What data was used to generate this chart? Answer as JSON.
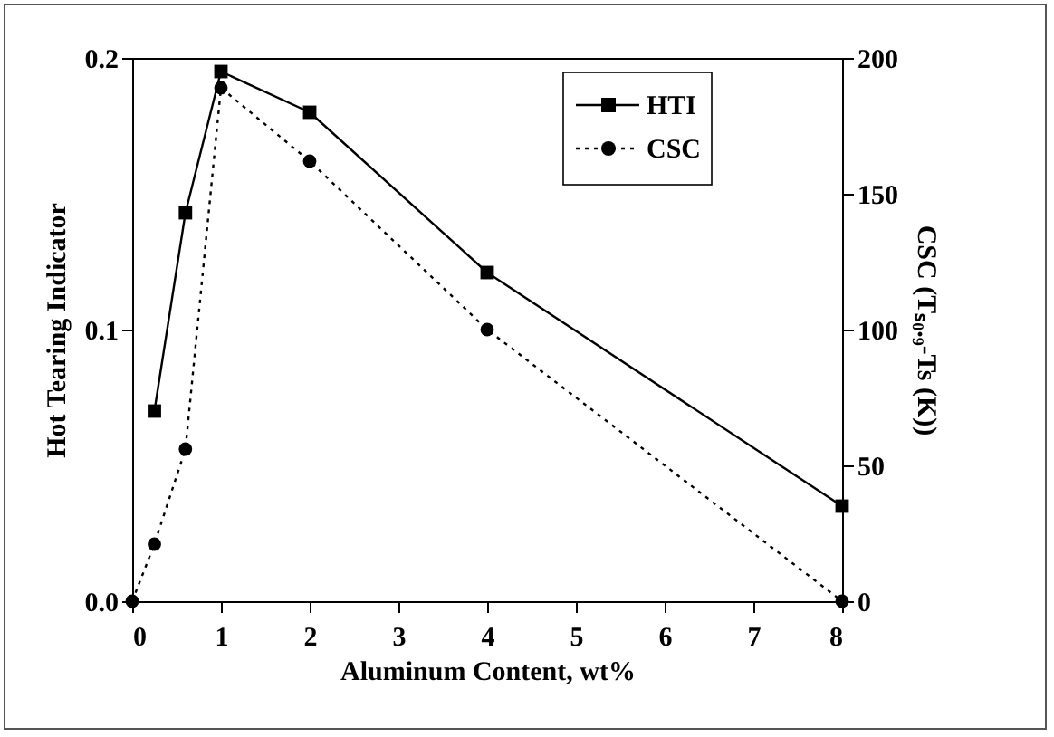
{
  "chart_data": {
    "type": "line",
    "xlabel": "Aluminum Content, wt%",
    "ylabel": "Hot Tearing Indicator",
    "y2label": "CSC (Tₛ₀.₉-Ts (K))",
    "xlim": [
      0,
      8
    ],
    "xticks": [
      0,
      1,
      2,
      3,
      4,
      5,
      6,
      7,
      8
    ],
    "ylim": [
      0,
      0.2
    ],
    "yticks": [
      {
        "value": 0,
        "label": "0.0"
      },
      {
        "value": 0.1,
        "label": "0.1"
      },
      {
        "value": 0.2,
        "label": "0.2"
      }
    ],
    "y2lim": [
      0,
      200
    ],
    "y2ticks": [
      0,
      50,
      100,
      150,
      200
    ],
    "legend": "top right",
    "grid": false,
    "series": [
      {
        "name": "HTI",
        "color": "#000000",
        "marker": "square",
        "line_style": "solid",
        "x": [
          0.25,
          0.6,
          1,
          2,
          4,
          8
        ],
        "values": [
          0.07,
          0.143,
          0.195,
          0.18,
          0.121,
          0.035
        ]
      },
      {
        "name": "CSC",
        "color": "#000000",
        "marker": "circle",
        "line_style": "dotted",
        "axis": "y2",
        "x": [
          0,
          0.25,
          0.6,
          1,
          2,
          4,
          8
        ],
        "values": [
          0,
          21,
          56,
          189,
          162,
          100,
          0
        ]
      }
    ]
  }
}
